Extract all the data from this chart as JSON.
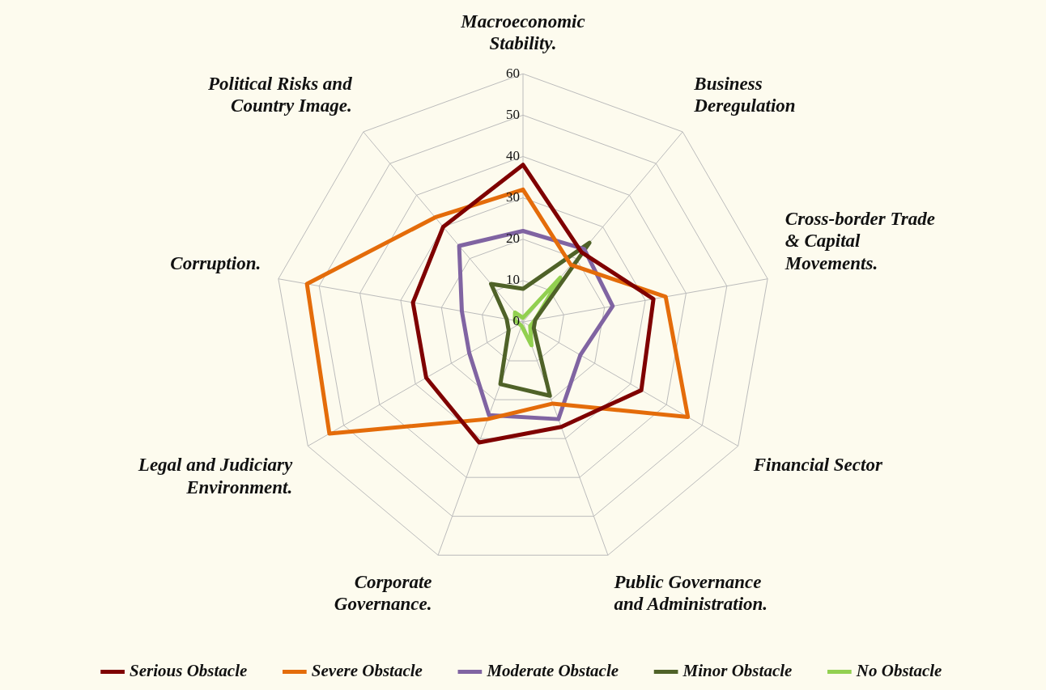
{
  "chart_data": {
    "type": "radar",
    "categories": [
      "Macroeconomic Stability.",
      "Business Deregulation",
      "Cross-border Trade & Capital Movements.",
      "Financial Sector",
      "Public Governance and Administration.",
      "Corporate Governance.",
      "Legal and Judiciary Environment.",
      "Corruption.",
      "Political Risks and Country Image."
    ],
    "series": [
      {
        "name": "Serious Obstacle",
        "color": "#7f0000",
        "values": [
          38,
          22,
          32,
          33,
          27,
          31,
          27,
          27,
          30
        ]
      },
      {
        "name": "Severe Obstacle",
        "color": "#e46c0a",
        "values": [
          32,
          18,
          35,
          46,
          21,
          25,
          54,
          53,
          33
        ]
      },
      {
        "name": "Moderate Obstacle",
        "color": "#8064a2",
        "values": [
          22,
          23,
          22,
          16,
          25,
          24,
          15,
          15,
          24
        ]
      },
      {
        "name": "Minor Obstacle",
        "color": "#4f6228",
        "values": [
          8,
          25,
          3,
          3,
          19,
          16,
          4,
          4,
          12
        ]
      },
      {
        "name": "No Obstacle",
        "color": "#92d050",
        "values": [
          1,
          14,
          3,
          2,
          6,
          1,
          1,
          2,
          3
        ]
      }
    ],
    "ylim": [
      0,
      60
    ],
    "yticks": [
      0,
      10,
      20,
      30,
      40,
      50,
      60
    ],
    "grid": true,
    "legend": "bottom",
    "marker": "none",
    "line_style": "solid"
  }
}
